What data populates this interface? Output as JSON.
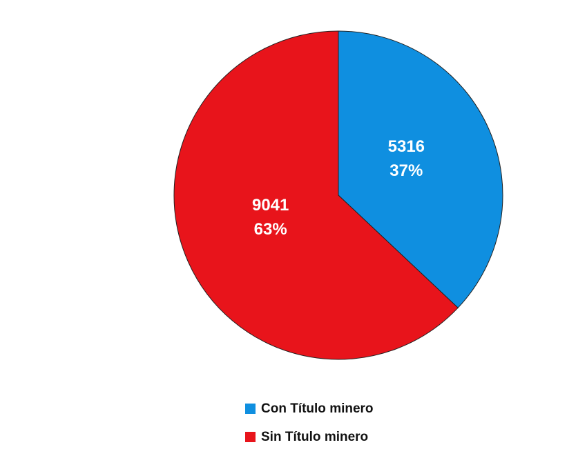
{
  "chart_data": {
    "type": "pie",
    "categories": [
      "Con Título minero",
      "Sin Título minero"
    ],
    "values": [
      5316,
      9041
    ],
    "percent_labels": [
      "37%",
      "63%"
    ],
    "colors": [
      "#0f8fe0",
      "#e8141b"
    ],
    "start_angle": 0,
    "direction": "clockwise",
    "legend": "bottom"
  }
}
